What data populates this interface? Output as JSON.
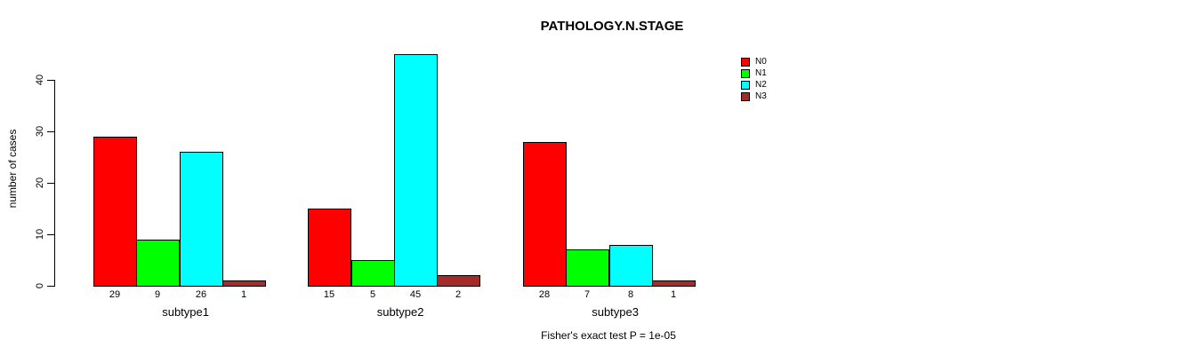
{
  "chart_data": {
    "type": "bar",
    "title": "PATHOLOGY.N.STAGE",
    "ylabel": "number of cases",
    "xlabel": "",
    "categories": [
      "subtype1",
      "subtype2",
      "subtype3"
    ],
    "series": [
      {
        "name": "N0",
        "color": "#ff0000",
        "values": [
          29,
          15,
          28
        ]
      },
      {
        "name": "N1",
        "color": "#00ff00",
        "values": [
          9,
          5,
          7
        ]
      },
      {
        "name": "N2",
        "color": "#00ffff",
        "values": [
          26,
          45,
          8
        ]
      },
      {
        "name": "N3",
        "color": "#a52a2a",
        "values": [
          1,
          2,
          1
        ]
      }
    ],
    "yticks": [
      0,
      10,
      20,
      30,
      40
    ],
    "ylim": [
      0,
      45
    ],
    "grid": false,
    "show_bar_values": true,
    "legend_position": "top-right",
    "background_color": "#ffffff",
    "annotation": "Fisher's exact test P = 1e-05"
  }
}
